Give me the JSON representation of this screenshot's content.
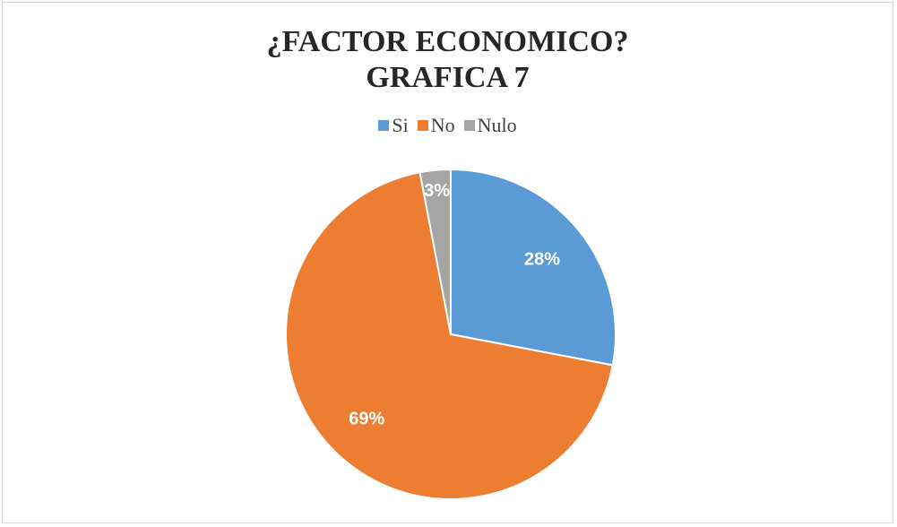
{
  "chart_data": {
    "type": "pie",
    "title": "¿FACTOR ECONOMICO?",
    "subtitle": "GRAFICA 7",
    "legend_position": "top",
    "categories": [
      "Si",
      "No",
      "Nulo"
    ],
    "values": [
      28,
      69,
      3
    ],
    "labels": [
      "28%",
      "69%",
      "3%"
    ],
    "colors": [
      "#5b9bd5",
      "#ed7d31",
      "#a5a5a5"
    ]
  }
}
